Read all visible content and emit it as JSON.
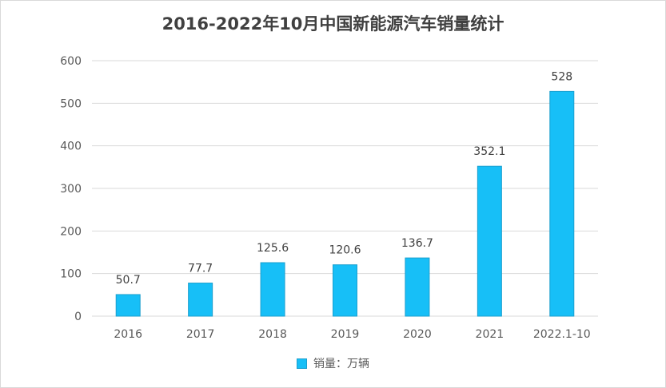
{
  "chart_data": {
    "type": "bar",
    "title": "2016-2022年10月中国新能源汽车销量统计",
    "categories": [
      "2016",
      "2017",
      "2018",
      "2019",
      "2020",
      "2021",
      "2022.1-10"
    ],
    "series": [
      {
        "name": "销量：万辆",
        "values": [
          50.7,
          77.7,
          125.6,
          120.6,
          136.7,
          352.1,
          528
        ]
      }
    ],
    "data_labels": [
      "50.7",
      "77.7",
      "125.6",
      "120.6",
      "136.7",
      "352.1",
      "528"
    ],
    "y_ticks": [
      "0",
      "100",
      "200",
      "300",
      "400",
      "500",
      "600"
    ],
    "ylim": [
      0,
      600
    ],
    "grid": true,
    "legend_position": "bottom",
    "colors": {
      "bar": "#17bff7",
      "bar_border": "#1a9fce",
      "grid": "#d9d9d9",
      "axis_text": "#595959",
      "title": "#404040"
    }
  }
}
